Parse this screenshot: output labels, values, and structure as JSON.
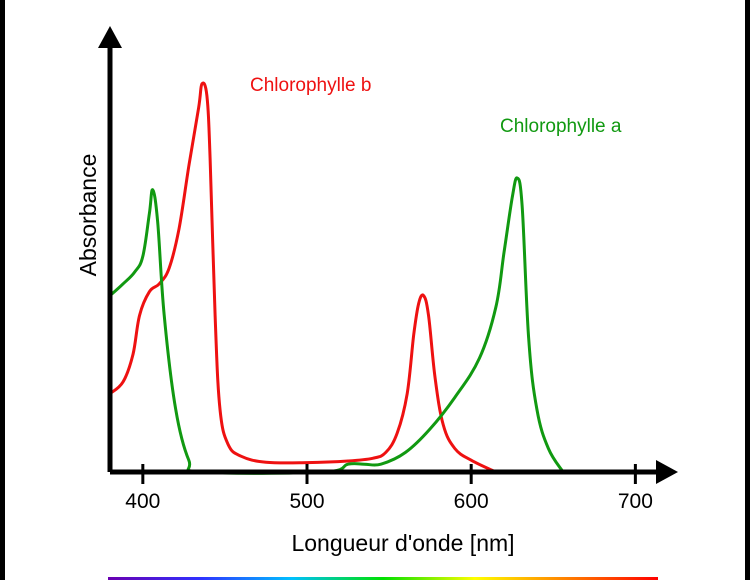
{
  "chart_data": {
    "type": "line",
    "title": "",
    "xlabel": "Longueur d'onde [nm]",
    "ylabel": "Absorbance",
    "xlim": [
      380,
      715
    ],
    "ylim": [
      0,
      1.0
    ],
    "x_ticks": [
      400,
      500,
      600,
      700
    ],
    "x_tick_labels": [
      "400",
      "500",
      "600",
      "700"
    ],
    "y_ticks": [],
    "grid": false,
    "legend": "labels placed next to curve peaks",
    "series": [
      {
        "name": "Chlorophylle b",
        "color": "#ee1111",
        "points": [
          [
            380,
            0.2
          ],
          [
            388,
            0.23
          ],
          [
            394,
            0.3
          ],
          [
            398,
            0.4
          ],
          [
            404,
            0.46
          ],
          [
            410,
            0.48
          ],
          [
            416,
            0.52
          ],
          [
            422,
            0.62
          ],
          [
            428,
            0.78
          ],
          [
            434,
            0.93
          ],
          [
            436,
            0.99
          ],
          [
            439,
            0.96
          ],
          [
            441,
            0.8
          ],
          [
            444,
            0.4
          ],
          [
            447,
            0.16
          ],
          [
            452,
            0.07
          ],
          [
            460,
            0.04
          ],
          [
            475,
            0.025
          ],
          [
            500,
            0.024
          ],
          [
            525,
            0.028
          ],
          [
            540,
            0.035
          ],
          [
            548,
            0.05
          ],
          [
            555,
            0.1
          ],
          [
            561,
            0.2
          ],
          [
            565,
            0.35
          ],
          [
            568,
            0.43
          ],
          [
            571,
            0.45
          ],
          [
            574,
            0.4
          ],
          [
            578,
            0.24
          ],
          [
            583,
            0.12
          ],
          [
            590,
            0.06
          ],
          [
            600,
            0.03
          ],
          [
            615,
            0.0
          ]
        ]
      },
      {
        "name": "Chlorophylle a",
        "color": "#119911",
        "points": [
          [
            380,
            0.45
          ],
          [
            388,
            0.48
          ],
          [
            395,
            0.51
          ],
          [
            400,
            0.55
          ],
          [
            404,
            0.66
          ],
          [
            406,
            0.72
          ],
          [
            409,
            0.64
          ],
          [
            413,
            0.4
          ],
          [
            420,
            0.16
          ],
          [
            428,
            0.03
          ],
          [
            436,
            0.0
          ],
          [
            510,
            0.0
          ],
          [
            525,
            0.02
          ],
          [
            535,
            0.02
          ],
          [
            545,
            0.02
          ],
          [
            560,
            0.05
          ],
          [
            575,
            0.11
          ],
          [
            590,
            0.19
          ],
          [
            605,
            0.29
          ],
          [
            615,
            0.42
          ],
          [
            620,
            0.56
          ],
          [
            625,
            0.7
          ],
          [
            628,
            0.75
          ],
          [
            631,
            0.68
          ],
          [
            635,
            0.34
          ],
          [
            640,
            0.16
          ],
          [
            647,
            0.06
          ],
          [
            656,
            0.0
          ]
        ]
      }
    ]
  },
  "spectrum_bar": {
    "stops": [
      "#6a00b0",
      "#3030ff",
      "#00c0ff",
      "#00e000",
      "#ffff00",
      "#ff8000",
      "#ff0000"
    ]
  }
}
